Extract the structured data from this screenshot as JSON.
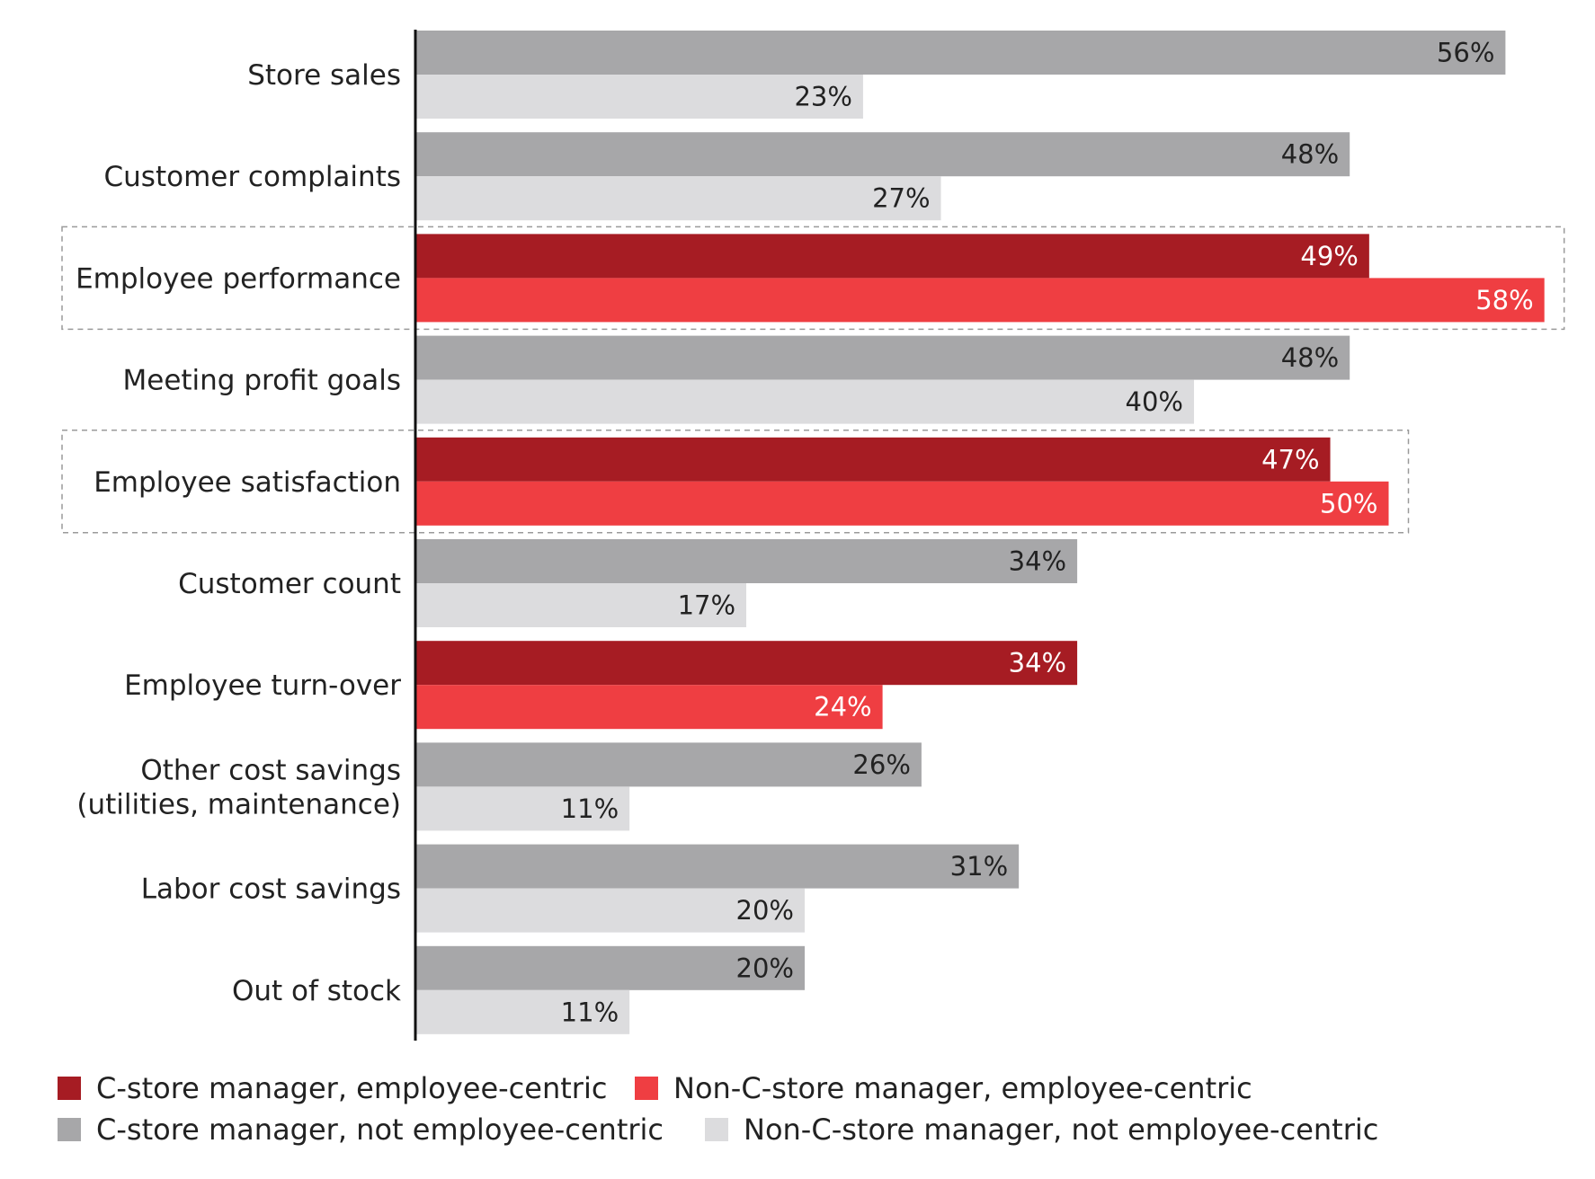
{
  "chart_data": {
    "type": "bar",
    "orientation": "horizontal",
    "title": "",
    "xlabel": "",
    "ylabel": "",
    "xlim": [
      0,
      60
    ],
    "grid": false,
    "legend_position": "bottom",
    "value_suffix": "%",
    "categories": [
      {
        "lines": [
          "Store sales"
        ],
        "group": "other",
        "highlight": false
      },
      {
        "lines": [
          "Customer complaints"
        ],
        "group": "other",
        "highlight": false
      },
      {
        "lines": [
          "Employee performance"
        ],
        "group": "employee",
        "highlight": true
      },
      {
        "lines": [
          "Meeting profit goals"
        ],
        "group": "other",
        "highlight": false
      },
      {
        "lines": [
          "Employee satisfaction"
        ],
        "group": "employee",
        "highlight": true
      },
      {
        "lines": [
          "Customer count"
        ],
        "group": "other",
        "highlight": false
      },
      {
        "lines": [
          "Employee turn-over"
        ],
        "group": "employee",
        "highlight": false
      },
      {
        "lines": [
          "Other cost savings",
          "(utilities, maintenance)"
        ],
        "group": "other",
        "highlight": false
      },
      {
        "lines": [
          "Labor cost savings"
        ],
        "group": "other",
        "highlight": false
      },
      {
        "lines": [
          "Out of stock"
        ],
        "group": "other",
        "highlight": false
      }
    ],
    "series": [
      {
        "name": "C-store manager, employee-centric",
        "key": "cstore_emp",
        "color": "#a61c23",
        "label_color": "#ffffff",
        "row": "first",
        "values": [
          null,
          null,
          49,
          null,
          47,
          null,
          34,
          null,
          null,
          null
        ]
      },
      {
        "name": "Non-C-store manager, employee-centric",
        "key": "noncstore_emp",
        "color": "#ef3e42",
        "label_color": "#ffffff",
        "row": "second",
        "values": [
          null,
          null,
          58,
          null,
          50,
          null,
          24,
          null,
          null,
          null
        ]
      },
      {
        "name": "C-store manager, not employee-centric",
        "key": "cstore_notemp",
        "color": "#a7a7a9",
        "label_color": "#222222",
        "row": "first",
        "values": [
          56,
          48,
          null,
          48,
          null,
          34,
          null,
          26,
          31,
          20
        ]
      },
      {
        "name": "Non-C-store manager, not employee-centric",
        "key": "noncstore_notemp",
        "color": "#dcdcde",
        "label_color": "#222222",
        "row": "second",
        "values": [
          23,
          27,
          null,
          40,
          null,
          17,
          null,
          11,
          20,
          11
        ]
      }
    ]
  },
  "colors": {
    "axis": "#111111",
    "highlight_border": "#9a9a9a"
  }
}
